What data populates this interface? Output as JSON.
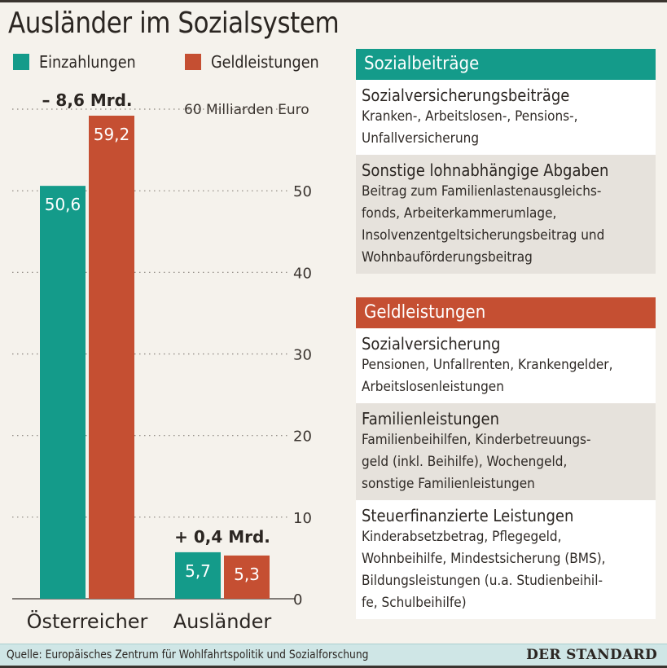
{
  "title": "Ausländer im Sozialsystem",
  "colors": {
    "einzahlungen": "#149b8a",
    "geldleistungen": "#c54f32",
    "background": "#f5f2ec"
  },
  "chart_data": {
    "type": "bar",
    "title": "Ausländer im Sozialsystem",
    "unit_label": "60 Milliarden Euro",
    "categories": [
      "Österreicher",
      "Ausländer"
    ],
    "series": [
      {
        "name": "Einzahlungen",
        "color": "#149b8a",
        "values": [
          50.6,
          5.7
        ],
        "labels": [
          "50,6",
          "5,7"
        ]
      },
      {
        "name": "Geldleistungen",
        "color": "#c54f32",
        "values": [
          59.2,
          5.3
        ],
        "labels": [
          "59,2",
          "5,3"
        ]
      }
    ],
    "differences": [
      "– 8,6 Mrd.",
      "+ 0,4 Mrd."
    ],
    "yticks": [
      0,
      10,
      20,
      30,
      40,
      50,
      60
    ],
    "ytick_labels": [
      "0",
      "10",
      "20",
      "30",
      "40",
      "50",
      "60 Milliarden Euro"
    ],
    "ylim": [
      0,
      60
    ],
    "xlabel": "",
    "ylabel": "Milliarden Euro",
    "grid": true,
    "legend": "top-left"
  },
  "legend": {
    "items": [
      {
        "label": "Einzahlungen",
        "color": "#149b8a"
      },
      {
        "label": "Geldleistungen",
        "color": "#c54f32"
      }
    ]
  },
  "panels": [
    {
      "header": "Sozialbeiträge",
      "color": "#149b8a",
      "boxes": [
        {
          "title": "Sozialversicherungsbeiträge",
          "lines": [
            "Kranken-, Arbeitslosen-, Pensions-,",
            "Unfallversicherung"
          ]
        },
        {
          "title": "Sonstige lohnabhängige Abgaben",
          "lines": [
            "Beitrag zum Familienlastenausgleichs-",
            "fonds, Arbeiterkammerumlage,",
            "Insolvenzentgeltsicherungsbeitrag und",
            "Wohnbauförderungsbeitrag"
          ]
        }
      ]
    },
    {
      "header": "Geldleistungen",
      "color": "#c54f32",
      "boxes": [
        {
          "title": "Sozialversicherung",
          "lines": [
            "Pensionen, Unfallrenten, Krankengelder,",
            "Arbeitslosenleistungen"
          ]
        },
        {
          "title": "Familienleistungen",
          "lines": [
            "Familienbeihilfen, Kinderbetreuungs-",
            "geld (inkl. Beihilfe), Wochengeld,",
            "sonstige Familienleistungen"
          ]
        },
        {
          "title": "Steuerfinanzierte Leistungen",
          "lines": [
            "Kinderabsetzbetrag, Pflegegeld,",
            "Wohnbeihilfe, Mindestsicherung (BMS),",
            "Bildungsleistungen (u.a. Studienbeihil-",
            "fe, Schulbeihilfe)"
          ]
        }
      ]
    }
  ],
  "footer": {
    "source": "Quelle: Europäisches Zentrum für Wohlfahrtspolitik und Sozialforschung",
    "logo": "DER STANDARD"
  }
}
